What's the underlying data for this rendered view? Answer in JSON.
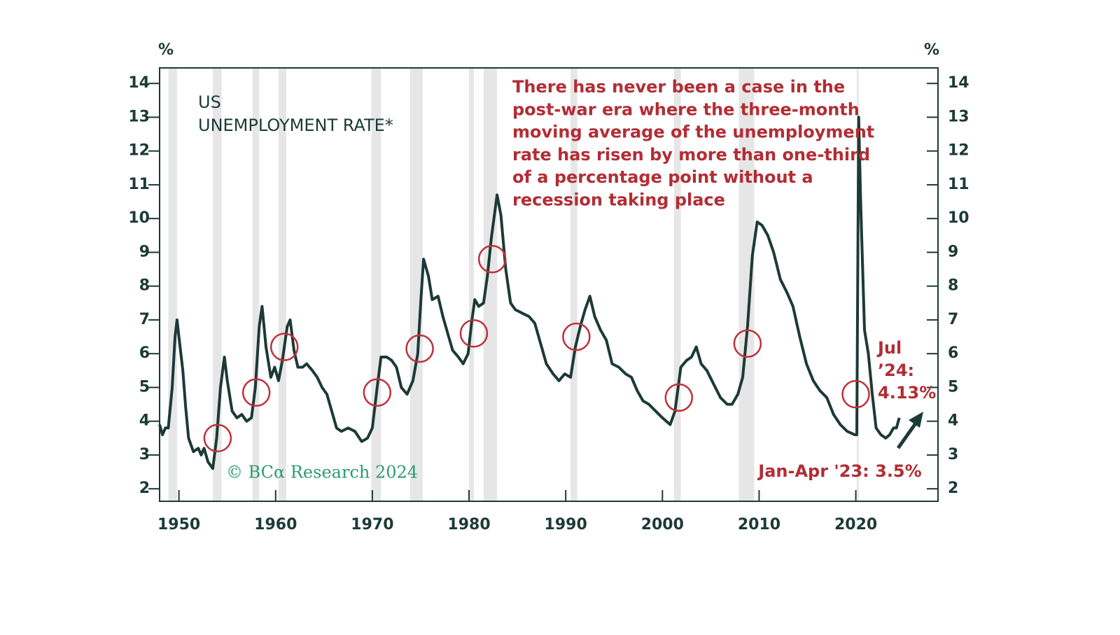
{
  "chart_data": {
    "type": "line",
    "title_lines": [
      "US",
      "UNEMPLOYMENT RATE*"
    ],
    "y_unit": "%",
    "y2_unit": "%",
    "note_lines": [
      "There has never been a case in the",
      "post-war era where the three-month",
      "moving average of the unemployment",
      "rate has risen by more than one-third",
      "of a percentage point without a",
      "recession taking place"
    ],
    "latest_lines": [
      "Jul",
      "’24:",
      "4.13%"
    ],
    "low_label": "Jan-Apr '23: 3.5%",
    "watermark": "© BCα Research 2024",
    "xlim": [
      1948,
      2028.5
    ],
    "ylim": [
      1.63,
      14.46
    ],
    "y2lim": [
      1.63,
      14.46
    ],
    "xticks": [
      1950,
      1960,
      1970,
      1980,
      1990,
      2000,
      2010,
      2020
    ],
    "yticks": [
      2,
      3,
      4,
      5,
      6,
      7,
      8,
      9,
      10,
      11,
      12,
      13,
      14
    ],
    "y2ticks": [
      2,
      3,
      4,
      5,
      6,
      7,
      8,
      9,
      10,
      11,
      12,
      13,
      14
    ],
    "recessions": [
      [
        1948.9,
        1949.8
      ],
      [
        1953.5,
        1954.4
      ],
      [
        1957.6,
        1958.3
      ],
      [
        1960.3,
        1961.1
      ],
      [
        1969.9,
        1970.9
      ],
      [
        1973.9,
        1975.2
      ],
      [
        1980.0,
        1980.5
      ],
      [
        1981.5,
        1982.9
      ],
      [
        1990.5,
        1991.2
      ],
      [
        2001.2,
        2001.9
      ],
      [
        2007.9,
        2009.5
      ],
      [
        2020.1,
        2020.3
      ]
    ],
    "recession_color": "#e6e6e6",
    "circles": {
      "x": [
        1954.0,
        1958.0,
        1960.9,
        1970.5,
        1974.9,
        1980.5,
        1982.4,
        1991.1,
        2001.7,
        2008.8,
        2020.0
      ],
      "y": [
        3.5,
        4.85,
        6.2,
        4.85,
        6.15,
        6.6,
        8.8,
        6.5,
        4.7,
        6.3,
        4.8
      ]
    },
    "circle_color": "#c0303a",
    "series": [
      {
        "color": "#1c3a36",
        "x": [
          1948.0,
          1948.3,
          1948.6,
          1948.9,
          1949.3,
          1949.6,
          1949.8,
          1950.0,
          1950.4,
          1950.7,
          1951.0,
          1951.5,
          1952.0,
          1952.3,
          1952.6,
          1953.0,
          1953.5,
          1953.9,
          1954.3,
          1954.7,
          1955.0,
          1955.5,
          1956.0,
          1956.5,
          1957.0,
          1957.5,
          1957.9,
          1958.3,
          1958.6,
          1959.0,
          1959.5,
          1959.9,
          1960.3,
          1960.7,
          1961.2,
          1961.5,
          1961.9,
          1962.3,
          1962.8,
          1963.2,
          1963.8,
          1964.3,
          1964.8,
          1965.3,
          1965.8,
          1966.3,
          1966.8,
          1967.5,
          1968.2,
          1968.9,
          1969.5,
          1970.0,
          1970.5,
          1970.9,
          1971.5,
          1972.0,
          1972.5,
          1973.0,
          1973.6,
          1974.2,
          1974.7,
          1975.0,
          1975.3,
          1975.8,
          1976.2,
          1976.8,
          1977.3,
          1977.8,
          1978.3,
          1978.9,
          1979.4,
          1979.9,
          1980.3,
          1980.6,
          1981.0,
          1981.5,
          1981.9,
          1982.3,
          1982.9,
          1983.3,
          1983.8,
          1984.3,
          1984.8,
          1985.5,
          1986.2,
          1986.8,
          1987.4,
          1988.0,
          1988.7,
          1989.3,
          1989.9,
          1990.5,
          1991.0,
          1991.5,
          1992.0,
          1992.5,
          1993.0,
          1993.6,
          1994.2,
          1994.8,
          1995.5,
          1996.2,
          1996.8,
          1997.4,
          1998.0,
          1998.6,
          1999.3,
          2000.0,
          2000.8,
          2001.3,
          2001.9,
          2002.5,
          2003.0,
          2003.5,
          2004.0,
          2004.6,
          2005.3,
          2006.0,
          2006.7,
          2007.2,
          2007.8,
          2008.3,
          2008.8,
          2009.3,
          2009.8,
          2010.3,
          2010.9,
          2011.5,
          2012.2,
          2012.9,
          2013.5,
          2014.2,
          2014.9,
          2015.6,
          2016.3,
          2017.0,
          2017.7,
          2018.4,
          2019.1,
          2019.9,
          2020.1,
          2020.3,
          2020.5,
          2020.9,
          2021.3,
          2021.7,
          2022.1,
          2022.6,
          2023.1,
          2023.5,
          2023.9,
          2024.2,
          2024.5
        ],
        "values": [
          3.9,
          3.6,
          3.8,
          3.8,
          5.0,
          6.5,
          7.0,
          6.5,
          5.5,
          4.4,
          3.5,
          3.1,
          3.2,
          3.0,
          3.2,
          2.8,
          2.6,
          3.5,
          5.0,
          5.9,
          5.2,
          4.3,
          4.1,
          4.2,
          4.0,
          4.1,
          5.0,
          6.8,
          7.4,
          6.2,
          5.3,
          5.6,
          5.2,
          5.8,
          6.8,
          7.0,
          6.1,
          5.6,
          5.6,
          5.7,
          5.5,
          5.3,
          5.0,
          4.8,
          4.3,
          3.8,
          3.7,
          3.8,
          3.7,
          3.4,
          3.5,
          3.8,
          5.0,
          5.9,
          5.9,
          5.8,
          5.6,
          5.0,
          4.8,
          5.2,
          6.0,
          7.5,
          8.8,
          8.3,
          7.6,
          7.7,
          7.1,
          6.6,
          6.1,
          5.9,
          5.7,
          6.0,
          7.0,
          7.6,
          7.4,
          7.5,
          8.3,
          9.4,
          10.7,
          10.1,
          8.5,
          7.5,
          7.3,
          7.2,
          7.1,
          6.9,
          6.3,
          5.7,
          5.4,
          5.2,
          5.4,
          5.3,
          6.2,
          6.8,
          7.3,
          7.7,
          7.1,
          6.7,
          6.4,
          5.7,
          5.6,
          5.4,
          5.3,
          4.9,
          4.6,
          4.5,
          4.3,
          4.1,
          3.9,
          4.3,
          5.6,
          5.8,
          5.9,
          6.2,
          5.7,
          5.5,
          5.1,
          4.7,
          4.5,
          4.5,
          4.8,
          5.3,
          6.8,
          8.9,
          9.9,
          9.8,
          9.5,
          9.0,
          8.2,
          7.8,
          7.4,
          6.5,
          5.7,
          5.2,
          4.9,
          4.7,
          4.2,
          3.9,
          3.7,
          3.6,
          3.6,
          13.0,
          10.5,
          6.7,
          6.0,
          4.8,
          3.8,
          3.6,
          3.5,
          3.6,
          3.8,
          3.8,
          4.1
        ]
      }
    ]
  }
}
